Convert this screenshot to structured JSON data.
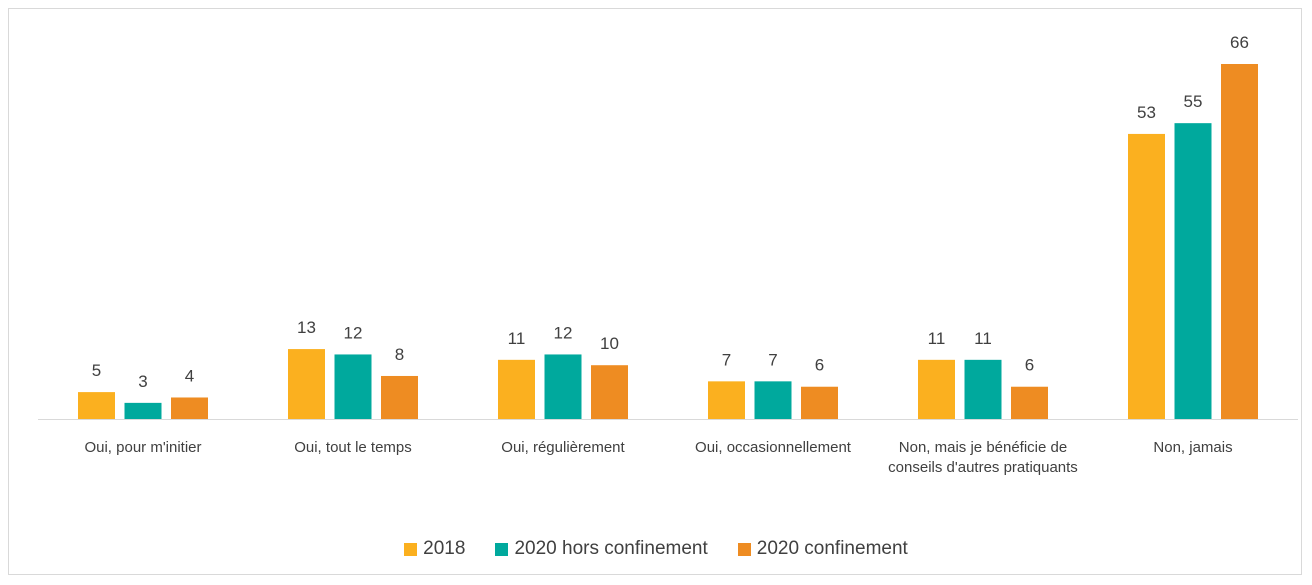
{
  "chart_data": {
    "type": "bar",
    "categories": [
      "Oui, pour m'initier",
      "Oui, tout le temps",
      "Oui, régulièrement",
      "Oui, occasionnellement",
      "Non, mais je bénéficie de conseils d'autres pratiquants",
      "Non, jamais"
    ],
    "series": [
      {
        "name": "2018",
        "color": "#fbb01f",
        "values": [
          5,
          13,
          11,
          7,
          11,
          53
        ]
      },
      {
        "name": "2020 hors confinement",
        "color": "#00a99d",
        "values": [
          3,
          12,
          12,
          7,
          11,
          55
        ]
      },
      {
        "name": "2020 confinement",
        "color": "#ee8c22",
        "values": [
          4,
          8,
          10,
          6,
          6,
          66
        ]
      }
    ],
    "legend": "bottom"
  }
}
